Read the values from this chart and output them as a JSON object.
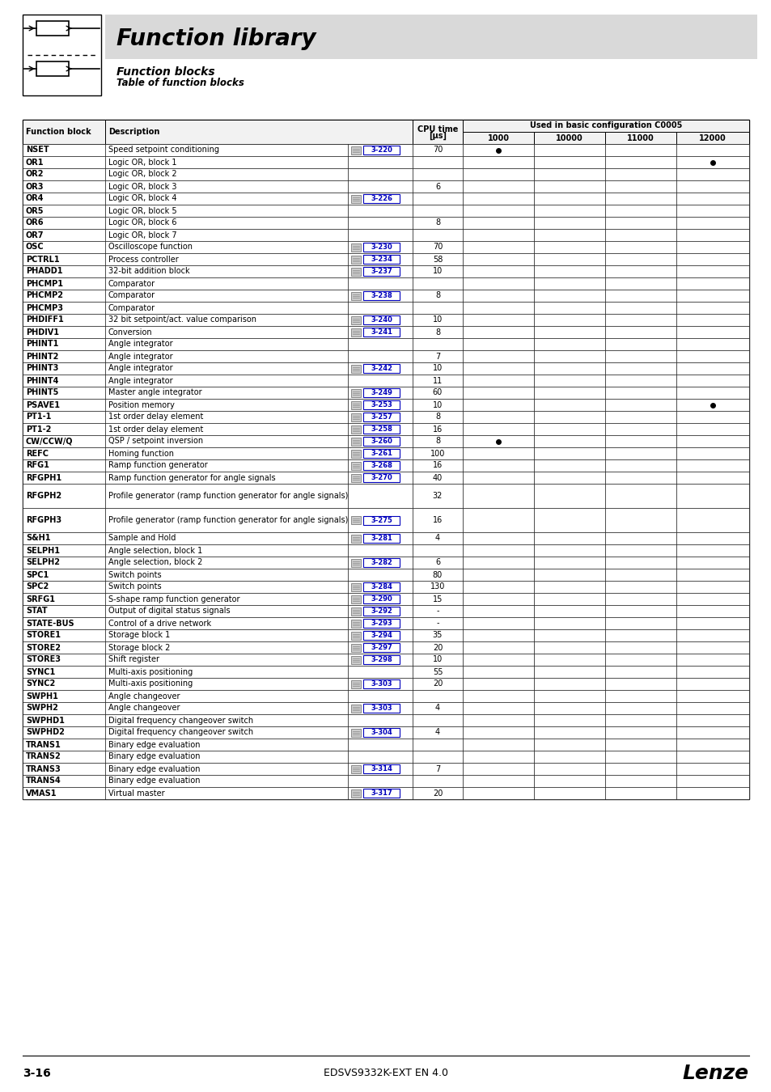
{
  "title": "Function library",
  "subtitle": "Function blocks",
  "subtitle2": "Table of function blocks",
  "rows": [
    [
      "NSET",
      "Speed setpoint conditioning",
      "3-220",
      "70",
      true,
      false,
      false,
      false
    ],
    [
      "OR1",
      "Logic OR, block 1",
      "",
      "",
      false,
      false,
      false,
      true
    ],
    [
      "OR2",
      "Logic OR, block 2",
      "",
      "",
      false,
      false,
      false,
      false
    ],
    [
      "OR3",
      "Logic OR, block 3",
      "",
      "6",
      false,
      false,
      false,
      false
    ],
    [
      "OR4",
      "Logic OR, block 4",
      "3-226",
      "",
      false,
      false,
      false,
      false
    ],
    [
      "OR5",
      "Logic OR, block 5",
      "",
      "",
      false,
      false,
      false,
      false
    ],
    [
      "OR6",
      "Logic OR, block 6",
      "",
      "8",
      false,
      false,
      false,
      false
    ],
    [
      "OR7",
      "Logic OR, block 7",
      "",
      "",
      false,
      false,
      false,
      false
    ],
    [
      "OSC",
      "Oscilloscope function",
      "3-230",
      "70",
      false,
      false,
      false,
      false
    ],
    [
      "PCTRL1",
      "Process controller",
      "3-234",
      "58",
      false,
      false,
      false,
      false
    ],
    [
      "PHADD1",
      "32-bit addition block",
      "3-237",
      "10",
      false,
      false,
      false,
      false
    ],
    [
      "PHCMP1",
      "Comparator",
      "",
      "",
      false,
      false,
      false,
      false
    ],
    [
      "PHCMP2",
      "Comparator",
      "3-238",
      "8",
      false,
      false,
      false,
      false
    ],
    [
      "PHCMP3",
      "Comparator",
      "",
      "",
      false,
      false,
      false,
      false
    ],
    [
      "PHDIFF1",
      "32 bit setpoint/act. value comparison",
      "3-240",
      "10",
      false,
      false,
      false,
      false
    ],
    [
      "PHDIV1",
      "Conversion",
      "3-241",
      "8",
      false,
      false,
      false,
      false
    ],
    [
      "PHINT1",
      "Angle integrator",
      "",
      "",
      false,
      false,
      false,
      false
    ],
    [
      "PHINT2",
      "Angle integrator",
      "",
      "7",
      false,
      false,
      false,
      false
    ],
    [
      "PHINT3",
      "Angle integrator",
      "3-242",
      "10",
      false,
      false,
      false,
      false
    ],
    [
      "PHINT4",
      "Angle integrator",
      "",
      "11",
      false,
      false,
      false,
      false
    ],
    [
      "PHINT5",
      "Master angle integrator",
      "3-249",
      "60",
      false,
      false,
      false,
      false
    ],
    [
      "PSAVE1",
      "Position memory",
      "3-253",
      "10",
      false,
      false,
      false,
      true
    ],
    [
      "PT1-1",
      "1st order delay element",
      "3-257",
      "8",
      false,
      false,
      false,
      false
    ],
    [
      "PT1-2",
      "1st order delay element",
      "3-258",
      "16",
      false,
      false,
      false,
      false
    ],
    [
      "CW/CCW/Q",
      "QSP / setpoint inversion",
      "3-260",
      "8",
      true,
      false,
      false,
      false
    ],
    [
      "REFC",
      "Homing function",
      "3-261",
      "100",
      false,
      false,
      false,
      false
    ],
    [
      "RFG1",
      "Ramp function generator",
      "3-268",
      "16",
      false,
      false,
      false,
      false
    ],
    [
      "RFGPH1",
      "Ramp function generator for angle signals",
      "3-270",
      "40",
      false,
      false,
      false,
      false
    ],
    [
      "RFGPH2",
      "Profile generator (ramp function generator for angle signals)",
      "",
      "32",
      false,
      false,
      false,
      false
    ],
    [
      "RFGPH3",
      "Profile generator (ramp function generator for angle signals)",
      "3-275",
      "16",
      false,
      false,
      false,
      false
    ],
    [
      "S&H1",
      "Sample and Hold",
      "3-281",
      "4",
      false,
      false,
      false,
      false
    ],
    [
      "SELPH1",
      "Angle selection, block 1",
      "",
      "",
      false,
      false,
      false,
      false
    ],
    [
      "SELPH2",
      "Angle selection, block 2",
      "3-282",
      "6",
      false,
      false,
      false,
      false
    ],
    [
      "SPC1",
      "Switch points",
      "",
      "80",
      false,
      false,
      false,
      false
    ],
    [
      "SPC2",
      "Switch points",
      "3-284",
      "130",
      false,
      false,
      false,
      false
    ],
    [
      "SRFG1",
      "S-shape ramp function generator",
      "3-290",
      "15",
      false,
      false,
      false,
      false
    ],
    [
      "STAT",
      "Output of digital status signals",
      "3-292",
      "-",
      false,
      false,
      false,
      false
    ],
    [
      "STATE-BUS",
      "Control of a drive network",
      "3-293",
      "-",
      false,
      false,
      false,
      false
    ],
    [
      "STORE1",
      "Storage block 1",
      "3-294",
      "35",
      false,
      false,
      false,
      false
    ],
    [
      "STORE2",
      "Storage block 2",
      "3-297",
      "20",
      false,
      false,
      false,
      false
    ],
    [
      "STORE3",
      "Shift register",
      "3-298",
      "10",
      false,
      false,
      false,
      false
    ],
    [
      "SYNC1",
      "Multi-axis positioning",
      "",
      "55",
      false,
      false,
      false,
      false
    ],
    [
      "SYNC2",
      "Multi-axis positioning",
      "3-303",
      "20",
      false,
      false,
      false,
      false
    ],
    [
      "SWPH1",
      "Angle changeover",
      "",
      "",
      false,
      false,
      false,
      false
    ],
    [
      "SWPH2",
      "Angle changeover",
      "3-303",
      "4",
      false,
      false,
      false,
      false
    ],
    [
      "SWPHD1",
      "Digital frequency changeover switch",
      "",
      "",
      false,
      false,
      false,
      false
    ],
    [
      "SWPHD2",
      "Digital frequency changeover switch",
      "3-304",
      "4",
      false,
      false,
      false,
      false
    ],
    [
      "TRANS1",
      "Binary edge evaluation",
      "",
      "",
      false,
      false,
      false,
      false
    ],
    [
      "TRANS2",
      "Binary edge evaluation",
      "",
      "",
      false,
      false,
      false,
      false
    ],
    [
      "TRANS3",
      "Binary edge evaluation",
      "3-314",
      "7",
      false,
      false,
      false,
      false
    ],
    [
      "TRANS4",
      "Binary edge evaluation",
      "",
      "",
      false,
      false,
      false,
      false
    ],
    [
      "VMAS1",
      "Virtual master",
      "3-317",
      "20",
      false,
      false,
      false,
      false
    ]
  ],
  "bg_color": "#ffffff",
  "dot_color": "#000000",
  "link_color": "#0000bb",
  "header_bg": "#f2f2f2"
}
